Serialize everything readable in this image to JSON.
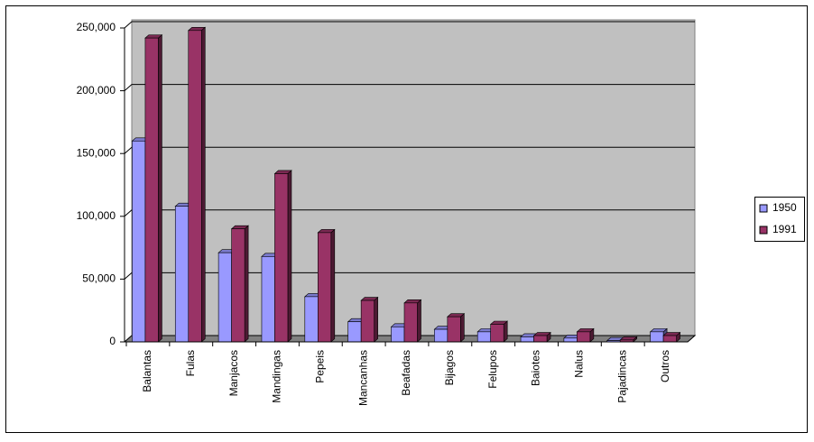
{
  "chart_data": {
    "type": "bar3d",
    "categories": [
      "Balantas",
      "Fulas",
      "Manjacos",
      "Mandingas",
      "Pepeis",
      "Mancanhas",
      "Beafadas",
      "Bijagos",
      "Felupos",
      "Baiotes",
      "Nalus",
      "Pajadincas",
      "Outros"
    ],
    "series": [
      {
        "name": "1950",
        "color": "#9999ff",
        "values": [
          160000,
          108000,
          71000,
          68000,
          36000,
          16000,
          12000,
          10000,
          8000,
          4000,
          3000,
          1000,
          8000
        ]
      },
      {
        "name": "1991",
        "color": "#993366",
        "values": [
          242000,
          248000,
          90000,
          134000,
          87000,
          33000,
          31000,
          20000,
          14000,
          5000,
          8000,
          1500,
          5000
        ]
      }
    ],
    "ylim": [
      0,
      250000
    ],
    "yticks": [
      0,
      {
        "value": 50000,
        "label": "50,000"
      },
      {
        "value": 100000,
        "label": "100,000"
      },
      {
        "value": 150000,
        "label": "150,000"
      },
      {
        "value": 200000,
        "label": "200,000"
      },
      {
        "value": 250000,
        "label": "250,000"
      }
    ],
    "grid": true,
    "legend": "right"
  }
}
